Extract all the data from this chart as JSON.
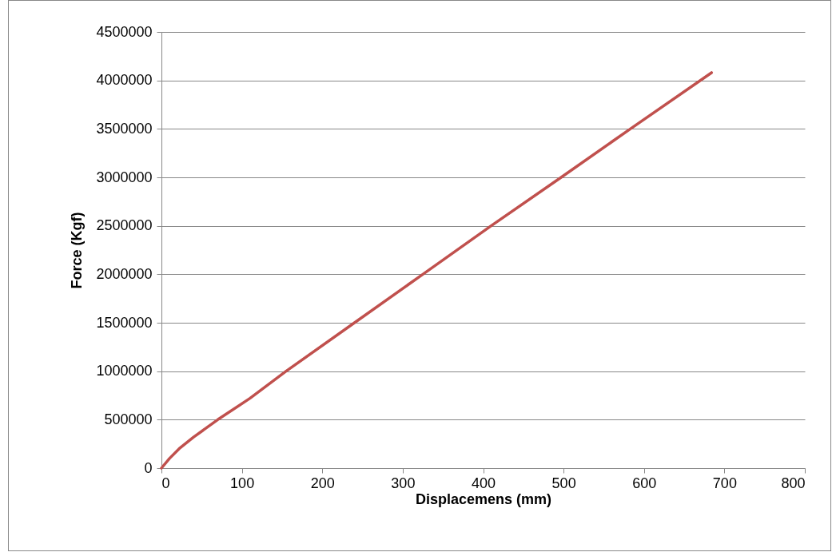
{
  "chart_data": {
    "type": "line",
    "xlabel": "Displacemens (mm)",
    "ylabel": "Force (Kgf)",
    "x": [
      0,
      10,
      22,
      40,
      70,
      110,
      155,
      240,
      325,
      410,
      497,
      583,
      684
    ],
    "series": [
      {
        "color": "#c0504d",
        "values": [
          0,
          100000,
          200000,
          320000,
          500000,
          720000,
          1000000,
          1500000,
          2000000,
          2500000,
          3000000,
          3500000,
          4080000
        ]
      }
    ],
    "xlim": [
      0,
      800
    ],
    "xticks": [
      0,
      100,
      200,
      300,
      400,
      500,
      600,
      700,
      800
    ],
    "ylim": [
      0,
      4500000
    ],
    "yticks": [
      0,
      500000,
      1000000,
      1500000,
      2000000,
      2500000,
      3000000,
      3500000,
      4000000,
      4500000
    ],
    "grid": "y",
    "legend": false,
    "marker": "none",
    "line_style": "solid"
  }
}
